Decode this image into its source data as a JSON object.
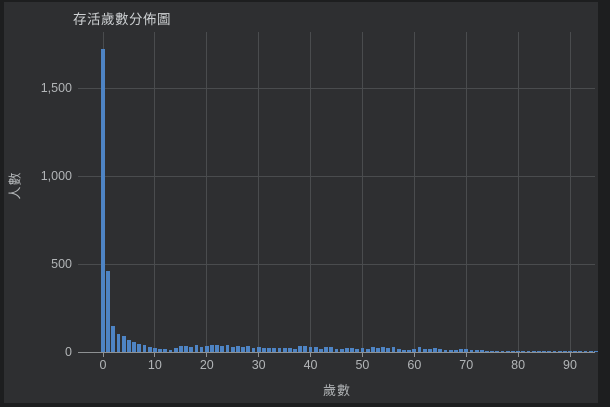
{
  "chart_data": {
    "type": "bar",
    "title": "存活歲數分佈圖",
    "xlabel": "歲數",
    "ylabel": "人數",
    "x": [
      0,
      1,
      2,
      3,
      4,
      5,
      6,
      7,
      8,
      9,
      10,
      11,
      12,
      13,
      14,
      15,
      16,
      17,
      18,
      19,
      20,
      21,
      22,
      23,
      24,
      25,
      26,
      27,
      28,
      29,
      30,
      31,
      32,
      33,
      34,
      35,
      36,
      37,
      38,
      39,
      40,
      41,
      42,
      43,
      44,
      45,
      46,
      47,
      48,
      49,
      50,
      51,
      52,
      53,
      54,
      55,
      56,
      57,
      58,
      59,
      60,
      61,
      62,
      63,
      64,
      65,
      66,
      67,
      68,
      69,
      70,
      71,
      72,
      73,
      74,
      75,
      76,
      77,
      78,
      79,
      80,
      81,
      82,
      83,
      84,
      85,
      86,
      87,
      88,
      89,
      90,
      91,
      92,
      93,
      94,
      95
    ],
    "values": [
      1720,
      460,
      150,
      100,
      90,
      68,
      57,
      45,
      40,
      28,
      25,
      19,
      15,
      9,
      23,
      34,
      34,
      28,
      38,
      28,
      32,
      42,
      42,
      34,
      38,
      27,
      34,
      30,
      34,
      25,
      30,
      25,
      23,
      25,
      23,
      25,
      23,
      19,
      34,
      34,
      27,
      30,
      15,
      27,
      27,
      19,
      15,
      23,
      23,
      15,
      25,
      15,
      27,
      23,
      27,
      23,
      27,
      15,
      11,
      11,
      15,
      27,
      19,
      19,
      23,
      19,
      11,
      11,
      11,
      15,
      17,
      11,
      11,
      9,
      8,
      8,
      8,
      6,
      6,
      4,
      6,
      4,
      4,
      4,
      3,
      3,
      2,
      2,
      2,
      2,
      1,
      1,
      2,
      1,
      1,
      2
    ],
    "xlim": [
      -2,
      96
    ],
    "ylim": [
      0,
      1815
    ],
    "x_ticks": [
      0,
      10,
      20,
      30,
      40,
      50,
      60,
      70,
      80,
      90
    ],
    "y_ticks": [
      0,
      500,
      1000,
      1500
    ],
    "y_tick_labels": [
      "0",
      "500",
      "1,000",
      "1,500"
    ],
    "grid": true,
    "legend": "none",
    "colors": {
      "bar": "#4e84c4",
      "background": "#2e2f31",
      "outer_background": "#1d1e1f",
      "gridline": "#4a4c4e",
      "axis": "#8e9193",
      "tick_text": "#b2b5b7",
      "title_text": "#cdd0d2"
    }
  }
}
